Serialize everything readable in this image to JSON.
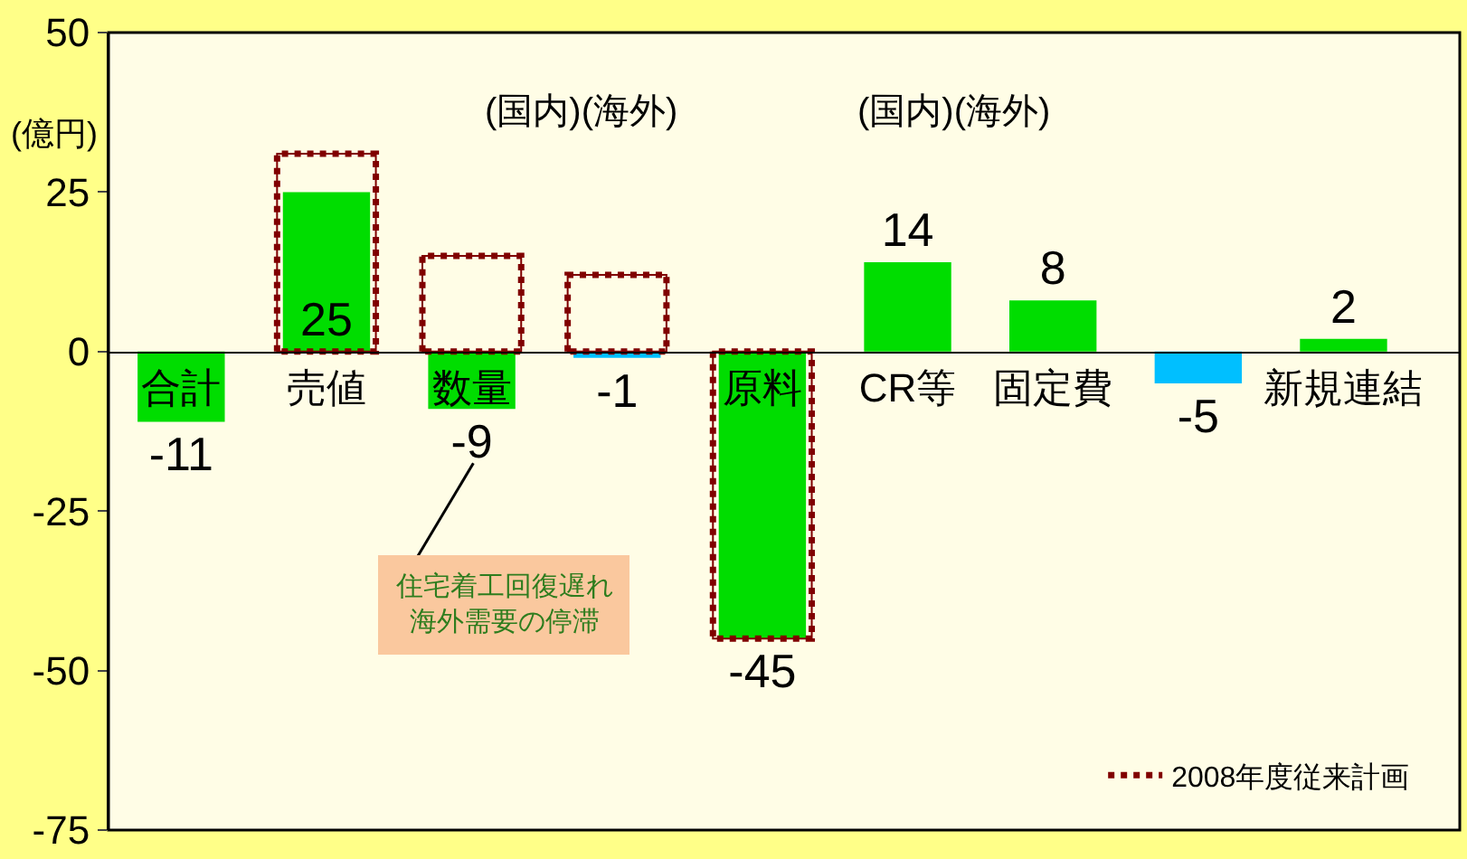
{
  "chart_data": {
    "type": "bar",
    "ylabel": "(億円)",
    "categories": [
      "合計",
      "売値",
      "数量",
      null,
      "原料",
      "CR等",
      "固定費",
      null,
      "新規連結"
    ],
    "series": [
      {
        "values": [
          -11,
          25,
          -9,
          -1,
          -45,
          14,
          8,
          -5,
          2
        ],
        "colors": [
          "#00dd00",
          "#00dd00",
          "#00dd00",
          "#00bfff",
          "#00dd00",
          "#00dd00",
          "#00dd00",
          "#00bfff",
          "#00dd00"
        ],
        "value_labels": [
          "-11",
          "25",
          "-9",
          "-1",
          "-45",
          "14",
          "8",
          "-5",
          "2"
        ]
      },
      {
        "name": "2008年度従来計画",
        "color": "#800000",
        "line_style": "dotted",
        "values": [
          null,
          31,
          15,
          12,
          -45,
          null,
          null,
          null,
          null
        ]
      }
    ],
    "ylim": [
      -75,
      50
    ],
    "yticks": [
      50,
      25,
      0,
      -25,
      -50,
      -75
    ],
    "grid": false,
    "legend": "bottom right",
    "annotations": [
      "(国内)(海外)",
      "(国内)(海外)",
      "住宅着工回復遅れ海外需要の停滞"
    ]
  }
}
